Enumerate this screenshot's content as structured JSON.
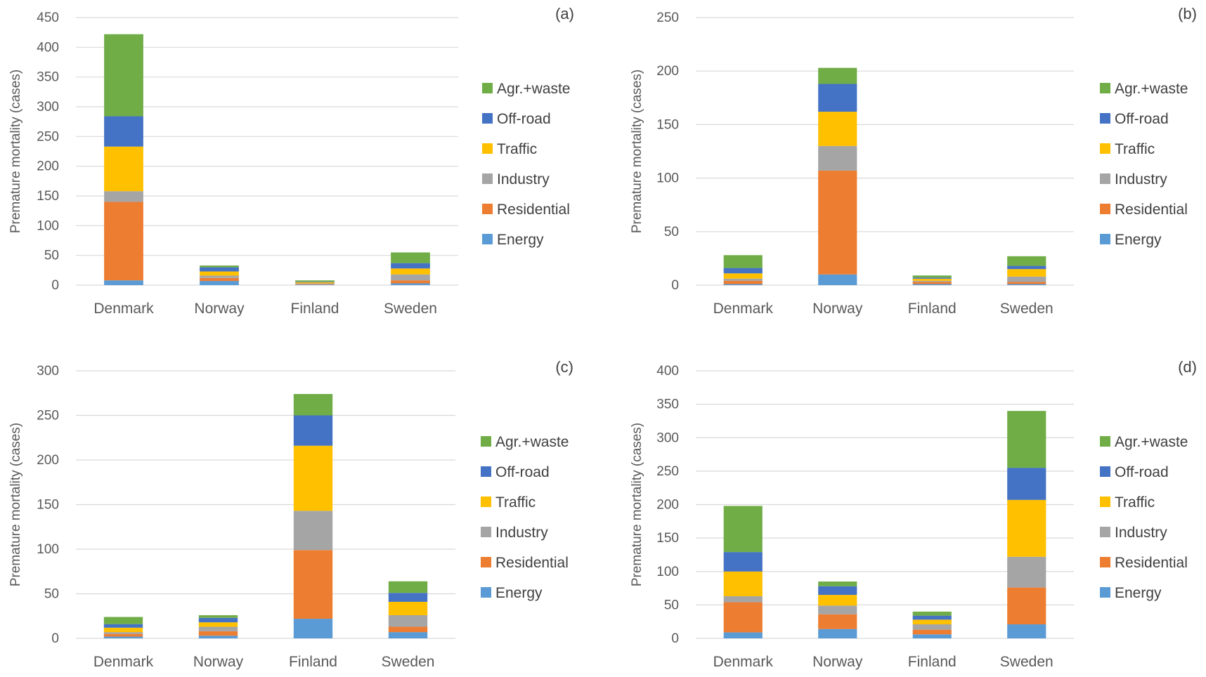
{
  "figure": {
    "series": [
      {
        "name": "Energy",
        "color": "#5B9BD5"
      },
      {
        "name": "Residential",
        "color": "#ED7D31"
      },
      {
        "name": "Industry",
        "color": "#A5A5A5"
      },
      {
        "name": "Traffic",
        "color": "#FFC000"
      },
      {
        "name": "Off-road",
        "color": "#4472C4"
      },
      {
        "name": "Agr.+waste",
        "color": "#70AD47"
      }
    ],
    "categories": [
      "Denmark",
      "Norway",
      "Finland",
      "Sweden"
    ],
    "ylabel": "Premature mortality  (cases)"
  },
  "chart_data": [
    {
      "type": "bar",
      "stacked": true,
      "panel_label": "(a)",
      "categories": [
        "Denmark",
        "Norway",
        "Finland",
        "Sweden"
      ],
      "ylabel": "Premature mortality  (cases)",
      "ylim": [
        0,
        450
      ],
      "yticks": [
        0,
        50,
        100,
        150,
        200,
        250,
        300,
        350,
        400,
        450
      ],
      "grid": true,
      "legend": "right",
      "series": [
        {
          "name": "Energy",
          "values": [
            8,
            7,
            1,
            3
          ]
        },
        {
          "name": "Residential",
          "values": [
            132,
            5,
            1,
            5
          ]
        },
        {
          "name": "Industry",
          "values": [
            18,
            4,
            1,
            10
          ]
        },
        {
          "name": "Traffic",
          "values": [
            75,
            7,
            2,
            10
          ]
        },
        {
          "name": "Off-road",
          "values": [
            51,
            7,
            1,
            9
          ]
        },
        {
          "name": "Agr.+waste",
          "values": [
            138,
            3,
            2,
            18
          ]
        }
      ]
    },
    {
      "type": "bar",
      "stacked": true,
      "panel_label": "(b)",
      "categories": [
        "Denmark",
        "Norway",
        "Finland",
        "Sweden"
      ],
      "ylabel": "Premature mortality  (cases)",
      "ylim": [
        0,
        250
      ],
      "yticks": [
        0,
        50,
        100,
        150,
        200,
        250
      ],
      "grid": true,
      "legend": "right",
      "series": [
        {
          "name": "Energy",
          "values": [
            1,
            10,
            1,
            1
          ]
        },
        {
          "name": "Residential",
          "values": [
            3,
            97,
            2,
            2
          ]
        },
        {
          "name": "Industry",
          "values": [
            2,
            23,
            1,
            5
          ]
        },
        {
          "name": "Traffic",
          "values": [
            5,
            32,
            2,
            7
          ]
        },
        {
          "name": "Off-road",
          "values": [
            5,
            26,
            1,
            3
          ]
        },
        {
          "name": "Agr.+waste",
          "values": [
            12,
            15,
            2,
            9
          ]
        }
      ]
    },
    {
      "type": "bar",
      "stacked": true,
      "panel_label": "(c)",
      "categories": [
        "Denmark",
        "Norway",
        "Finland",
        "Sweden"
      ],
      "ylabel": "Premature mortality  (cases)",
      "ylim": [
        0,
        300
      ],
      "yticks": [
        0,
        50,
        100,
        150,
        200,
        250,
        300
      ],
      "grid": true,
      "legend": "right",
      "series": [
        {
          "name": "Energy",
          "values": [
            2,
            3,
            22,
            7
          ]
        },
        {
          "name": "Residential",
          "values": [
            3,
            5,
            77,
            6
          ]
        },
        {
          "name": "Industry",
          "values": [
            2,
            5,
            44,
            13
          ]
        },
        {
          "name": "Traffic",
          "values": [
            5,
            5,
            73,
            15
          ]
        },
        {
          "name": "Off-road",
          "values": [
            4,
            5,
            34,
            10
          ]
        },
        {
          "name": "Agr.+waste",
          "values": [
            8,
            3,
            24,
            13
          ]
        }
      ]
    },
    {
      "type": "bar",
      "stacked": true,
      "panel_label": "(d)",
      "categories": [
        "Denmark",
        "Norway",
        "Finland",
        "Sweden"
      ],
      "ylabel": "Premature mortality  (cases)",
      "ylim": [
        0,
        400
      ],
      "yticks": [
        0,
        50,
        100,
        150,
        200,
        250,
        300,
        350,
        400
      ],
      "grid": true,
      "legend": "right",
      "series": [
        {
          "name": "Energy",
          "values": [
            9,
            14,
            6,
            21
          ]
        },
        {
          "name": "Residential",
          "values": [
            45,
            22,
            7,
            55
          ]
        },
        {
          "name": "Industry",
          "values": [
            9,
            13,
            8,
            46
          ]
        },
        {
          "name": "Traffic",
          "values": [
            37,
            16,
            7,
            85
          ]
        },
        {
          "name": "Off-road",
          "values": [
            29,
            13,
            6,
            48
          ]
        },
        {
          "name": "Agr.+waste",
          "values": [
            69,
            7,
            6,
            85
          ]
        }
      ]
    }
  ]
}
